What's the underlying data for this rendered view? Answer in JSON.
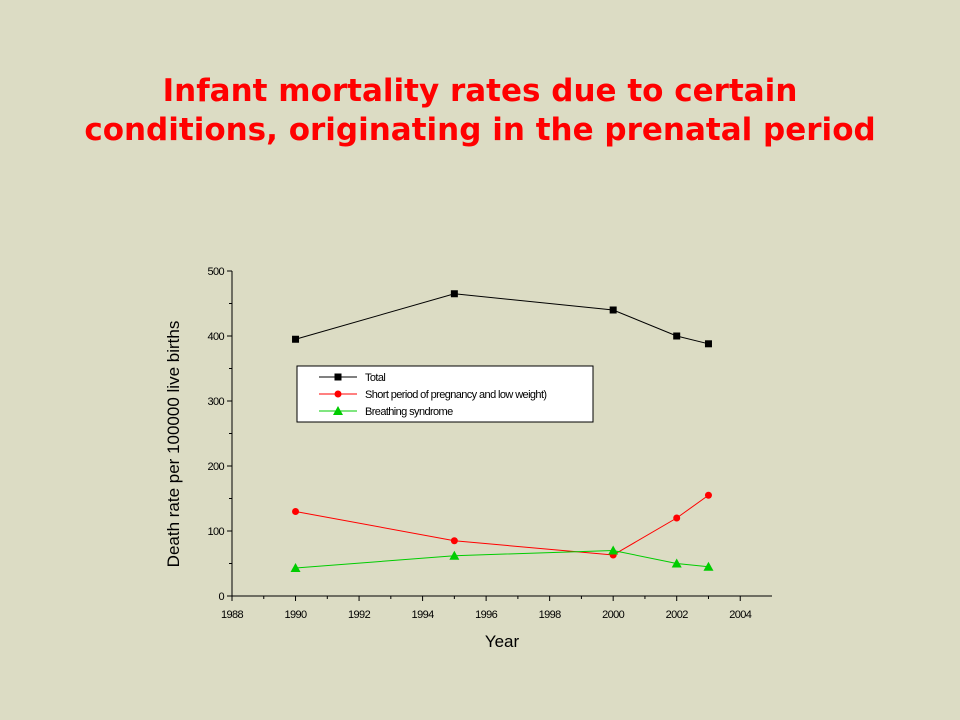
{
  "slide": {
    "title_line1": "Infant mortality rates due to certain",
    "title_line2": "conditions, originating in the prenatal period"
  },
  "colors": {
    "background": "#dcdcc4",
    "title": "#ff0000",
    "series_total": "#000000",
    "series_short": "#ff0000",
    "series_breathing": "#00cc00"
  },
  "chart_data": {
    "type": "line",
    "xlabel": "Year",
    "ylabel": "Death rate per 100000 live births",
    "xlim": [
      1988,
      2005
    ],
    "ylim": [
      0,
      500
    ],
    "x_ticks": [
      1988,
      1990,
      1992,
      1994,
      1996,
      1998,
      2000,
      2002,
      2004
    ],
    "y_ticks": [
      0,
      100,
      200,
      300,
      400,
      500
    ],
    "legend_position": "upper middle, boxed",
    "series": [
      {
        "name": "Total",
        "marker": "square",
        "color": "#000000",
        "x": [
          1990,
          1995,
          2000,
          2002,
          2003
        ],
        "y": [
          395,
          465,
          440,
          400,
          388
        ]
      },
      {
        "name": "Short period of pregnancy and low weight)",
        "marker": "circle",
        "color": "#ff0000",
        "x": [
          1990,
          1995,
          2000,
          2002,
          2003
        ],
        "y": [
          130,
          85,
          63,
          120,
          155
        ]
      },
      {
        "name": "Breathing syndrome",
        "marker": "triangle",
        "color": "#00cc00",
        "x": [
          1990,
          1995,
          2000,
          2002,
          2003
        ],
        "y": [
          43,
          62,
          70,
          50,
          45
        ]
      }
    ]
  }
}
